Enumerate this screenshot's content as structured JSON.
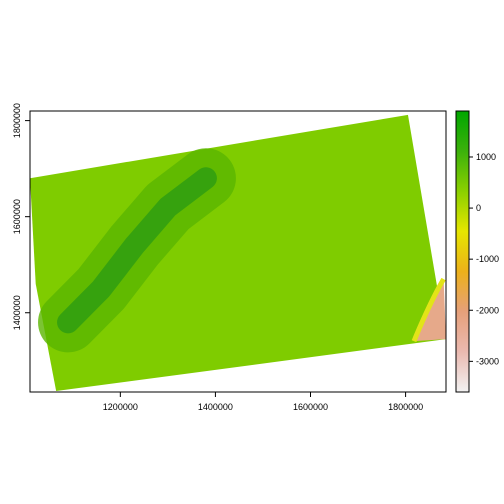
{
  "chart_data": {
    "type": "heatmap",
    "title": "",
    "xlabel": "",
    "ylabel": "",
    "xlim": [
      1010000,
      1885000
    ],
    "ylim": [
      1235000,
      1820000
    ],
    "x_ticks": [
      {
        "value": 1200000,
        "label": "1200000"
      },
      {
        "value": 1400000,
        "label": "1400000"
      },
      {
        "value": 1600000,
        "label": "1600000"
      },
      {
        "value": 1800000,
        "label": "1800000"
      }
    ],
    "y_ticks": [
      {
        "value": 1400000,
        "label": "1400000"
      },
      {
        "value": 1600000,
        "label": "1600000"
      },
      {
        "value": 1800000,
        "label": "1800000"
      }
    ],
    "raster_footprint": [
      {
        "x": 1010000,
        "y": 1680000
      },
      {
        "x": 1805000,
        "y": 1812000
      },
      {
        "x": 1885000,
        "y": 1345000
      },
      {
        "x": 1065000,
        "y": 1237000
      },
      {
        "x": 1022000,
        "y": 1460000
      }
    ],
    "ridge_path": [
      {
        "x": 1090000,
        "y": 1380000
      },
      {
        "x": 1160000,
        "y": 1450000
      },
      {
        "x": 1230000,
        "y": 1540000
      },
      {
        "x": 1300000,
        "y": 1620000
      },
      {
        "x": 1380000,
        "y": 1680000
      }
    ],
    "legend": {
      "range": [
        -3600,
        1900
      ],
      "ticks": [
        {
          "value": 1000,
          "label": "1000"
        },
        {
          "value": 0,
          "label": "0"
        },
        {
          "value": -1000,
          "label": "-1000"
        },
        {
          "value": -2000,
          "label": "-2000"
        },
        {
          "value": -3000,
          "label": "-3000"
        }
      ],
      "colors": [
        "#f2f2f2",
        "#eab9b0",
        "#e6a07a",
        "#ecb11a",
        "#e6e600",
        "#8bd000",
        "#3cb10b",
        "#00a600"
      ]
    },
    "colors": {
      "lowland": "#7fcc00",
      "upland": "#5ab500",
      "ridge": "#2f9e10",
      "coast": "#e2e418",
      "sea_shallow": "#e6a98a",
      "sea_deep": "#f1dcdc"
    }
  }
}
